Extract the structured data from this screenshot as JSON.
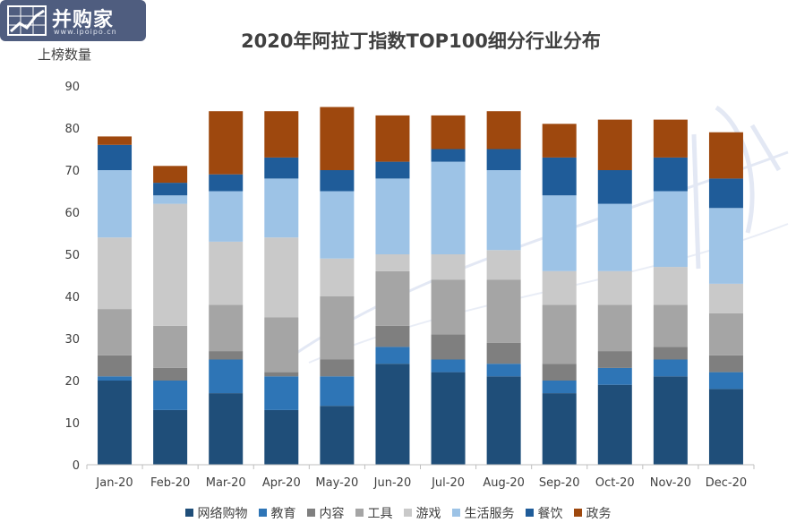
{
  "logo": {
    "name": "并购家",
    "url": "www.ipoipo.cn"
  },
  "chart_data": {
    "type": "bar",
    "stacked": true,
    "title": "2020年阿拉丁指数TOP100细分行业分布",
    "ylabel": "上榜数量",
    "xlabel": "",
    "ylim": [
      0,
      90
    ],
    "yticks": [
      0,
      10,
      20,
      30,
      40,
      50,
      60,
      70,
      80,
      90
    ],
    "grid": false,
    "legend_position": "bottom",
    "categories": [
      "Jan-20",
      "Feb-20",
      "Mar-20",
      "Apr-20",
      "May-20",
      "Jun-20",
      "Jul-20",
      "Aug-20",
      "Sep-20",
      "Oct-20",
      "Nov-20",
      "Dec-20"
    ],
    "series": [
      {
        "name": "网络购物",
        "color": "#1f4e79",
        "values": [
          20,
          13,
          17,
          13,
          14,
          24,
          22,
          21,
          17,
          19,
          21,
          18
        ]
      },
      {
        "name": "教育",
        "color": "#2e75b6",
        "values": [
          1,
          7,
          8,
          8,
          7,
          4,
          3,
          3,
          3,
          4,
          4,
          4
        ]
      },
      {
        "name": "内容",
        "color": "#7f7f7f",
        "values": [
          5,
          3,
          2,
          1,
          4,
          5,
          6,
          5,
          4,
          4,
          3,
          4
        ]
      },
      {
        "name": "工具",
        "color": "#a5a5a5",
        "values": [
          11,
          10,
          11,
          13,
          15,
          13,
          13,
          15,
          14,
          11,
          10,
          10
        ]
      },
      {
        "name": "游戏",
        "color": "#c9c9c9",
        "values": [
          17,
          29,
          15,
          19,
          9,
          4,
          6,
          7,
          8,
          8,
          9,
          7
        ]
      },
      {
        "name": "生活服务",
        "color": "#9dc3e6",
        "values": [
          16,
          2,
          12,
          14,
          16,
          18,
          22,
          19,
          18,
          16,
          18,
          18
        ]
      },
      {
        "name": "餐饮",
        "color": "#1f5c99",
        "values": [
          6,
          3,
          4,
          5,
          5,
          4,
          3,
          5,
          9,
          8,
          8,
          7
        ]
      },
      {
        "name": "政务",
        "color": "#9e480e",
        "values": [
          2,
          4,
          15,
          11,
          15,
          11,
          8,
          9,
          8,
          12,
          9,
          11
        ]
      }
    ]
  }
}
